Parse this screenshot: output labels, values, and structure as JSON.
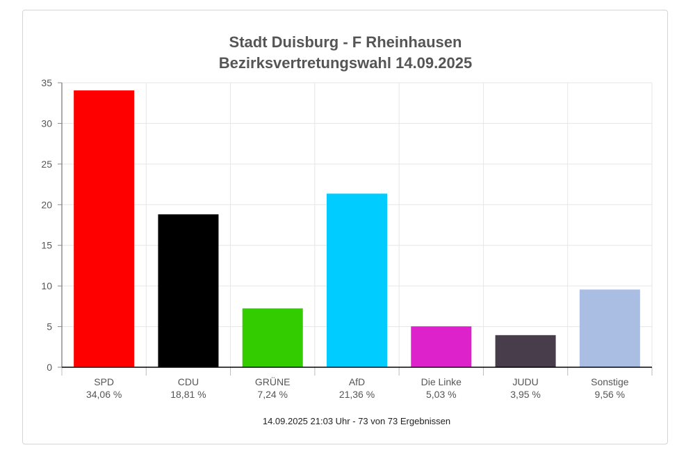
{
  "chart_data": {
    "type": "bar",
    "title": "Stadt Duisburg - F Rheinhausen",
    "subtitle": "Bezirksvertretungswahl 14.09.2025",
    "categories": [
      "SPD",
      "CDU",
      "GRÜNE",
      "AfD",
      "Die Linke",
      "JUDU",
      "Sonstige"
    ],
    "value_labels": [
      "34,06 %",
      "18,81 %",
      "7,24 %",
      "21,36 %",
      "5,03 %",
      "3,95 %",
      "9,56 %"
    ],
    "values": [
      34.06,
      18.81,
      7.24,
      21.36,
      5.03,
      3.95,
      9.56
    ],
    "colors": [
      "#ff0000",
      "#000000",
      "#33cc00",
      "#00ccff",
      "#dd22cc",
      "#473d4b",
      "#aabde3"
    ],
    "ylim": [
      0,
      35
    ],
    "yticks": [
      0,
      5,
      10,
      15,
      20,
      25,
      30,
      35
    ],
    "grid": true,
    "footer": "14.09.2025 21:03 Uhr - 73 von 73 Ergebnissen"
  }
}
